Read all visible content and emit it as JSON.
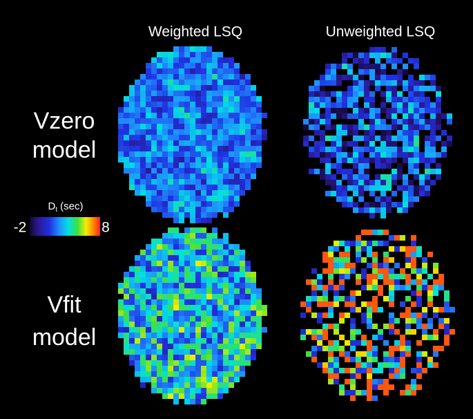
{
  "columns": [
    "Weighted LSQ",
    "Unweighted LSQ"
  ],
  "rows": [
    {
      "lines": [
        "Vzero",
        "model"
      ]
    },
    {
      "lines": [
        "Vfit",
        "model"
      ]
    }
  ],
  "colorbar": {
    "symbol": "D",
    "subscript": "t",
    "unit": "(sec)",
    "min": -2,
    "max": 8
  }
}
